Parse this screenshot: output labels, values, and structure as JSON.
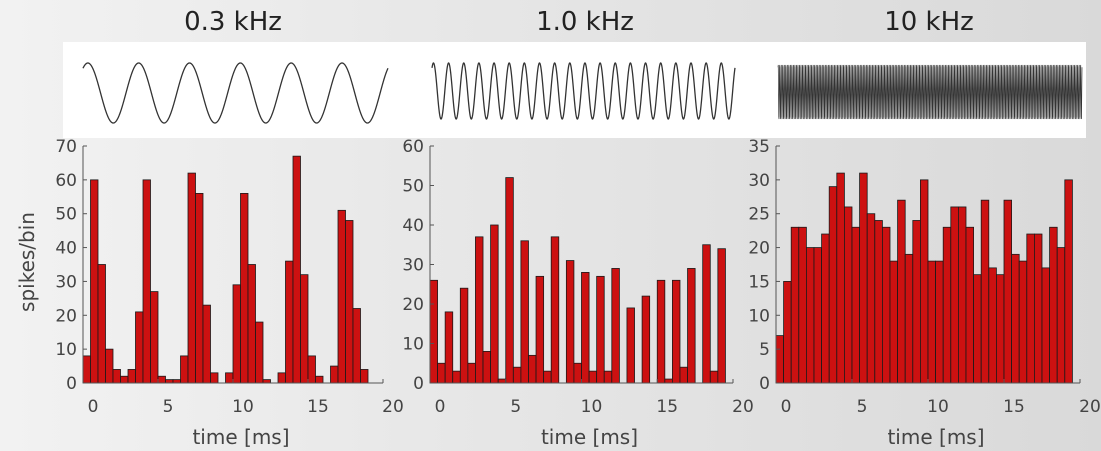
{
  "figure": {
    "ylabel": "spikes/bin",
    "xlabel": "time [ms]"
  },
  "chart_data": [
    {
      "type": "bar",
      "title": "0.3 kHz",
      "xlabel": "time [ms]",
      "ylabel": "spikes/bin",
      "xlim": [
        0,
        20
      ],
      "ylim": [
        0,
        70
      ],
      "xticks": [
        0,
        5,
        10,
        15,
        20
      ],
      "yticks": [
        0,
        10,
        20,
        30,
        40,
        50,
        60,
        70
      ],
      "bin_width": 0.5,
      "x": [
        0,
        0.5,
        1,
        1.5,
        2,
        2.5,
        3,
        3.5,
        4,
        4.5,
        5,
        5.5,
        6,
        6.5,
        7,
        7.5,
        8,
        8.5,
        9,
        9.5,
        10,
        10.5,
        11,
        11.5,
        12,
        12.5,
        13,
        13.5,
        14,
        14.5,
        15,
        15.5,
        16,
        16.5,
        17,
        17.5,
        18,
        18.5,
        19,
        19.5
      ],
      "values": [
        8,
        60,
        35,
        10,
        4,
        2,
        4,
        21,
        60,
        27,
        2,
        1,
        1,
        8,
        62,
        56,
        23,
        3,
        0,
        3,
        29,
        56,
        35,
        18,
        1,
        0,
        3,
        36,
        67,
        32,
        8,
        2,
        0,
        5,
        51,
        48,
        22,
        4,
        0,
        0
      ],
      "color": "#cc1111",
      "waveform_cycles": 6,
      "grid": false
    },
    {
      "type": "bar",
      "title": "1.0 kHz",
      "xlabel": "time [ms]",
      "xlim": [
        0,
        20
      ],
      "ylim": [
        0,
        60
      ],
      "xticks": [
        0,
        5,
        10,
        15,
        20
      ],
      "yticks": [
        0,
        10,
        20,
        30,
        40,
        50,
        60
      ],
      "bin_width": 0.5,
      "x": [
        0,
        0.5,
        1,
        1.5,
        2,
        2.5,
        3,
        3.5,
        4,
        4.5,
        5,
        5.5,
        6,
        6.5,
        7,
        7.5,
        8,
        8.5,
        9,
        9.5,
        10,
        10.5,
        11,
        11.5,
        12,
        12.5,
        13,
        13.5,
        14,
        14.5,
        15,
        15.5,
        16,
        16.5,
        17,
        17.5,
        18,
        18.5,
        19,
        19.5
      ],
      "values": [
        26,
        5,
        18,
        3,
        24,
        5,
        37,
        8,
        40,
        1,
        52,
        4,
        36,
        7,
        27,
        3,
        37,
        0,
        31,
        5,
        28,
        3,
        27,
        3,
        29,
        0,
        19,
        0,
        22,
        0,
        26,
        1,
        26,
        4,
        29,
        0,
        35,
        3,
        34,
        0
      ],
      "color": "#cc1111",
      "waveform_cycles": 20,
      "grid": false
    },
    {
      "type": "bar",
      "title": "10 kHz",
      "xlabel": "time [ms]",
      "xlim": [
        0,
        20
      ],
      "ylim": [
        0,
        35
      ],
      "xticks": [
        0,
        5,
        10,
        15,
        20
      ],
      "yticks": [
        0,
        5,
        10,
        15,
        20,
        25,
        30,
        35
      ],
      "bin_width": 0.5,
      "x": [
        0,
        0.5,
        1,
        1.5,
        2,
        2.5,
        3,
        3.5,
        4,
        4.5,
        5,
        5.5,
        6,
        6.5,
        7,
        7.5,
        8,
        8.5,
        9,
        9.5,
        10,
        10.5,
        11,
        11.5,
        12,
        12.5,
        13,
        13.5,
        14,
        14.5,
        15,
        15.5,
        16,
        16.5,
        17,
        17.5,
        18,
        18.5,
        19,
        19.5
      ],
      "values": [
        7,
        15,
        23,
        23,
        20,
        20,
        22,
        29,
        31,
        26,
        23,
        31,
        25,
        24,
        23,
        18,
        27,
        19,
        24,
        30,
        18,
        18,
        23,
        26,
        26,
        23,
        16,
        27,
        17,
        16,
        27,
        19,
        18,
        22,
        22,
        17,
        23,
        20,
        30,
        0
      ],
      "color": "#cc1111",
      "waveform_cycles": 200,
      "grid": false
    }
  ]
}
